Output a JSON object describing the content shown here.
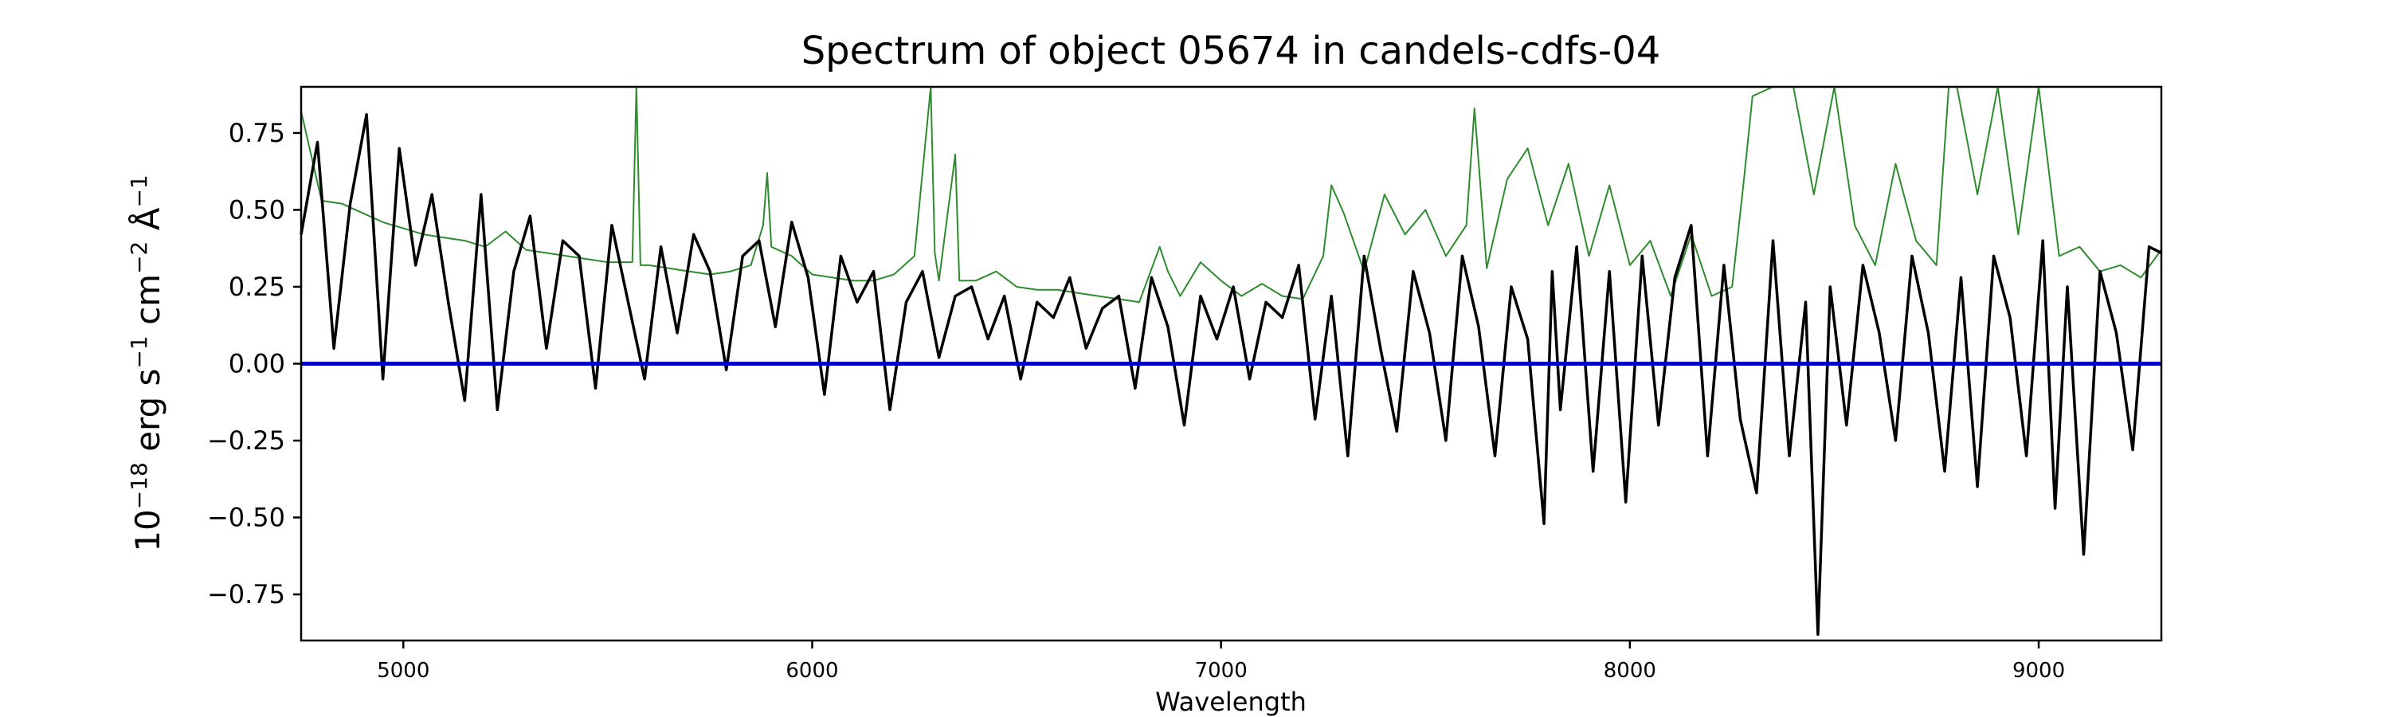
{
  "chart_data": {
    "type": "line",
    "title": "Spectrum of object 05674 in candels-cdfs-04",
    "xlabel": "Wavelength",
    "ylabel": {
      "base": "10",
      "exponent": "−18",
      "erg": " erg s",
      "s_exp": "−1",
      "cm": " cm",
      "cm_exp": "−2",
      "angstrom": " Å",
      "a_exp": "−1"
    },
    "xlim": [
      4750,
      9300
    ],
    "ylim": [
      -0.9,
      0.9
    ],
    "xticks": [
      {
        "value": 5000,
        "label": "5000"
      },
      {
        "value": 6000,
        "label": "6000"
      },
      {
        "value": 7000,
        "label": "7000"
      },
      {
        "value": 8000,
        "label": "8000"
      },
      {
        "value": 9000,
        "label": "9000"
      }
    ],
    "yticks": [
      {
        "value": 0.75,
        "label": "0.75"
      },
      {
        "value": 0.5,
        "label": "0.50"
      },
      {
        "value": 0.25,
        "label": "0.25"
      },
      {
        "value": 0.0,
        "label": "0.00"
      },
      {
        "value": -0.25,
        "label": "−0.25"
      },
      {
        "value": -0.5,
        "label": "−0.50"
      },
      {
        "value": -0.75,
        "label": "−0.75"
      }
    ],
    "grid": false,
    "series": [
      {
        "color": "#2e8b2e",
        "x": [
          4750,
          4800,
          4850,
          4900,
          4950,
          5000,
          5050,
          5100,
          5150,
          5200,
          5250,
          5300,
          5350,
          5400,
          5450,
          5500,
          5560,
          5570,
          5580,
          5600,
          5650,
          5700,
          5750,
          5800,
          5850,
          5880,
          5890,
          5900,
          5950,
          6000,
          6050,
          6100,
          6150,
          6200,
          6250,
          6290,
          6300,
          6310,
          6350,
          6360,
          6400,
          6450,
          6500,
          6550,
          6600,
          6650,
          6700,
          6750,
          6800,
          6850,
          6870,
          6900,
          6950,
          7000,
          7050,
          7100,
          7150,
          7200,
          7250,
          7270,
          7300,
          7350,
          7400,
          7450,
          7500,
          7550,
          7600,
          7620,
          7650,
          7700,
          7750,
          7800,
          7850,
          7900,
          7950,
          8000,
          8050,
          8100,
          8150,
          8200,
          8250,
          8280,
          8300,
          8350,
          8400,
          8450,
          8500,
          8550,
          8600,
          8650,
          8700,
          8750,
          8780,
          8800,
          8850,
          8900,
          8950,
          9000,
          9050,
          9100,
          9150,
          9200,
          9250,
          9300
        ],
        "y": [
          0.82,
          0.53,
          0.52,
          0.49,
          0.46,
          0.44,
          0.42,
          0.41,
          0.4,
          0.38,
          0.43,
          0.37,
          0.36,
          0.35,
          0.34,
          0.33,
          0.33,
          0.9,
          0.32,
          0.32,
          0.31,
          0.3,
          0.29,
          0.3,
          0.32,
          0.45,
          0.62,
          0.38,
          0.35,
          0.29,
          0.28,
          0.27,
          0.27,
          0.29,
          0.35,
          0.9,
          0.36,
          0.27,
          0.68,
          0.27,
          0.27,
          0.3,
          0.25,
          0.24,
          0.24,
          0.23,
          0.22,
          0.21,
          0.2,
          0.38,
          0.3,
          0.22,
          0.33,
          0.27,
          0.22,
          0.26,
          0.22,
          0.21,
          0.35,
          0.58,
          0.49,
          0.3,
          0.55,
          0.42,
          0.5,
          0.35,
          0.45,
          0.83,
          0.31,
          0.6,
          0.7,
          0.45,
          0.65,
          0.35,
          0.58,
          0.32,
          0.4,
          0.22,
          0.42,
          0.22,
          0.25,
          0.61,
          0.87,
          0.9,
          0.9,
          0.55,
          0.9,
          0.45,
          0.32,
          0.65,
          0.4,
          0.32,
          0.9,
          0.9,
          0.55,
          0.9,
          0.42,
          0.9,
          0.35,
          0.38,
          0.3,
          0.32,
          0.28,
          0.37
        ]
      },
      {
        "color": "#000000",
        "x": [
          4750,
          4790,
          4830,
          4870,
          4910,
          4950,
          4990,
          5030,
          5070,
          5110,
          5150,
          5190,
          5230,
          5270,
          5310,
          5350,
          5390,
          5430,
          5470,
          5510,
          5550,
          5590,
          5630,
          5670,
          5710,
          5750,
          5790,
          5830,
          5870,
          5910,
          5950,
          5990,
          6030,
          6070,
          6110,
          6150,
          6190,
          6230,
          6270,
          6310,
          6350,
          6390,
          6430,
          6470,
          6510,
          6550,
          6590,
          6630,
          6670,
          6710,
          6750,
          6790,
          6830,
          6870,
          6910,
          6950,
          6990,
          7030,
          7070,
          7110,
          7150,
          7190,
          7230,
          7270,
          7310,
          7350,
          7390,
          7430,
          7470,
          7510,
          7550,
          7590,
          7630,
          7670,
          7710,
          7750,
          7790,
          7810,
          7830,
          7870,
          7910,
          7950,
          7990,
          8030,
          8070,
          8110,
          8150,
          8190,
          8230,
          8270,
          8310,
          8350,
          8390,
          8430,
          8460,
          8490,
          8530,
          8570,
          8610,
          8650,
          8690,
          8730,
          8770,
          8810,
          8850,
          8890,
          8930,
          8970,
          9010,
          9040,
          9070,
          9110,
          9150,
          9190,
          9230,
          9270,
          9300
        ],
        "y": [
          0.42,
          0.72,
          0.05,
          0.52,
          0.81,
          -0.05,
          0.7,
          0.32,
          0.55,
          0.2,
          -0.12,
          0.55,
          -0.15,
          0.3,
          0.48,
          0.05,
          0.4,
          0.35,
          -0.08,
          0.45,
          0.2,
          -0.05,
          0.38,
          0.1,
          0.42,
          0.3,
          -0.02,
          0.35,
          0.4,
          0.12,
          0.46,
          0.28,
          -0.1,
          0.35,
          0.2,
          0.3,
          -0.15,
          0.2,
          0.3,
          0.02,
          0.22,
          0.25,
          0.08,
          0.22,
          -0.05,
          0.2,
          0.15,
          0.28,
          0.05,
          0.18,
          0.22,
          -0.08,
          0.28,
          0.12,
          -0.2,
          0.22,
          0.08,
          0.25,
          -0.05,
          0.2,
          0.15,
          0.32,
          -0.18,
          0.22,
          -0.3,
          0.35,
          0.05,
          -0.22,
          0.3,
          0.1,
          -0.25,
          0.35,
          0.12,
          -0.3,
          0.25,
          0.08,
          -0.52,
          0.3,
          -0.15,
          0.38,
          -0.35,
          0.3,
          -0.45,
          0.35,
          -0.2,
          0.28,
          0.45,
          -0.3,
          0.32,
          -0.18,
          -0.42,
          0.4,
          -0.3,
          0.2,
          -0.88,
          0.25,
          -0.2,
          0.32,
          0.1,
          -0.25,
          0.35,
          0.1,
          -0.35,
          0.28,
          -0.4,
          0.35,
          0.15,
          -0.3,
          0.4,
          -0.47,
          0.25,
          -0.62,
          0.3,
          0.1,
          -0.28,
          0.38,
          0.36
        ]
      },
      {
        "color": "#0000cc",
        "x": [
          4750,
          9300
        ],
        "y": [
          0.0,
          0.0
        ]
      }
    ]
  }
}
